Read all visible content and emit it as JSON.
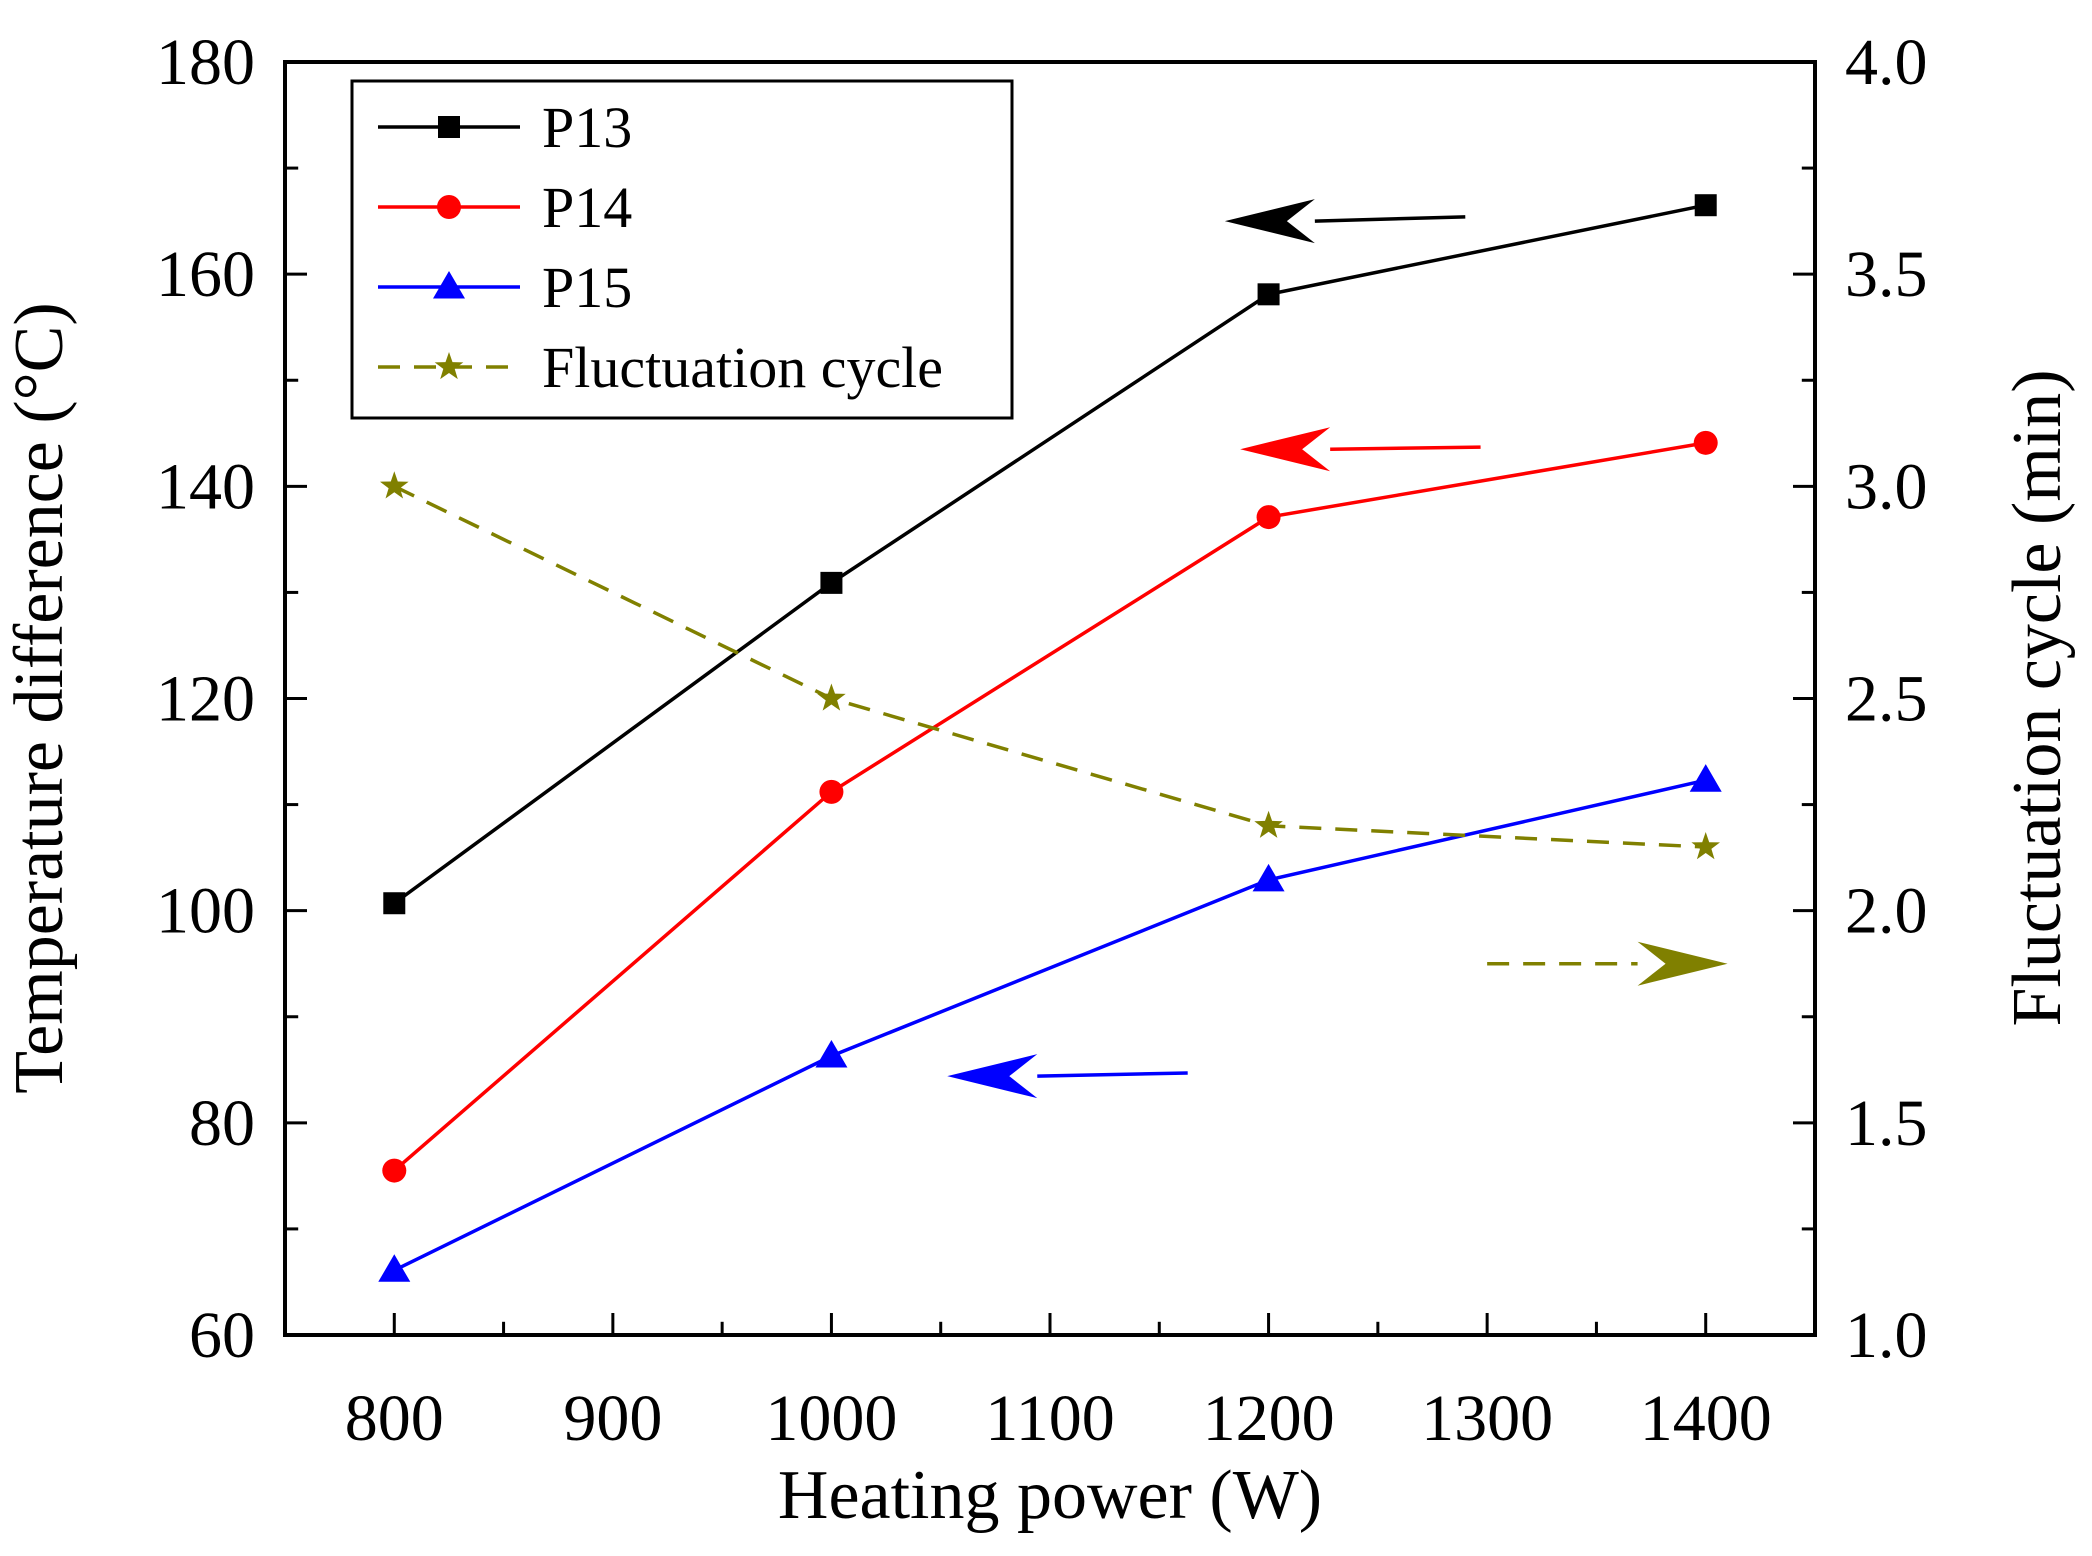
{
  "chart_data": {
    "type": "line",
    "x": [
      800,
      1000,
      1200,
      1400
    ],
    "xlabel": "Heating power (W)",
    "ylabel_left": "Temperature difference (°C)",
    "ylabel_right": "Fluctuation cycle (min)",
    "xlim": [
      750,
      1450
    ],
    "xticks": [
      800,
      900,
      1000,
      1100,
      1200,
      1300,
      1400
    ],
    "ylim_left": [
      60,
      180
    ],
    "yticks_left": [
      60,
      80,
      100,
      120,
      140,
      160,
      180
    ],
    "ylim_right": [
      1.0,
      4.0
    ],
    "yticks_right": [
      "1.0",
      "1.5",
      "2.0",
      "2.5",
      "3.0",
      "3.5",
      "4.0"
    ],
    "grid": false,
    "legend_position": "top-left",
    "series": [
      {
        "name": "P13",
        "axis": "left",
        "values": [
          100.7,
          130.9,
          158.1,
          166.5
        ],
        "color": "#000000",
        "marker": "square",
        "dash": false
      },
      {
        "name": "P14",
        "axis": "left",
        "values": [
          75.5,
          111.2,
          137.1,
          144.1
        ],
        "color": "#ff0000",
        "marker": "circle",
        "dash": false
      },
      {
        "name": "P15",
        "axis": "left",
        "values": [
          66.1,
          86.3,
          102.9,
          112.3
        ],
        "color": "#0000ff",
        "marker": "triangle",
        "dash": false
      },
      {
        "name": "Fluctuation cycle",
        "axis": "right",
        "values": [
          3.0,
          2.5,
          2.2,
          2.15
        ],
        "color": "#808000",
        "marker": "star",
        "dash": true
      }
    ],
    "annotations": [
      {
        "type": "arrow",
        "direction": "left",
        "color": "#000000",
        "from": [
          1290,
          165.4
        ],
        "to": [
          1180,
          165.0
        ]
      },
      {
        "type": "arrow",
        "direction": "left",
        "color": "#ff0000",
        "from": [
          1297,
          143.7
        ],
        "to": [
          1187,
          143.5
        ]
      },
      {
        "type": "arrow",
        "direction": "left",
        "color": "#0000ff",
        "from": [
          1163,
          84.7
        ],
        "to": [
          1053,
          84.4
        ]
      },
      {
        "type": "arrow",
        "direction": "right",
        "color": "#808000",
        "from": [
          1300,
          95.0
        ],
        "to": [
          1410,
          95.0
        ]
      }
    ]
  }
}
